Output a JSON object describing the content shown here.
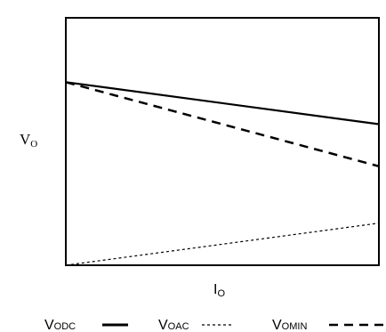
{
  "chart_data": {
    "type": "line",
    "title": "",
    "ylabel": {
      "main": "V",
      "sub": "O"
    },
    "xlabel": {
      "main": "I",
      "sub": "O"
    },
    "x": [
      0,
      1
    ],
    "xlim": [
      0,
      1
    ],
    "ylim": [
      0,
      1
    ],
    "grid": false,
    "legend_placement": "bottom",
    "series": [
      {
        "name": "V",
        "name_sub": "ODC",
        "style": "solid",
        "values": [
          0.74,
          0.57
        ]
      },
      {
        "name": "V",
        "name_sub": "OAC",
        "style": "dotted",
        "values": [
          0.0,
          0.17
        ]
      },
      {
        "name": "V",
        "name_sub": "OMIN",
        "style": "dashed",
        "values": [
          0.74,
          0.4
        ]
      }
    ]
  }
}
